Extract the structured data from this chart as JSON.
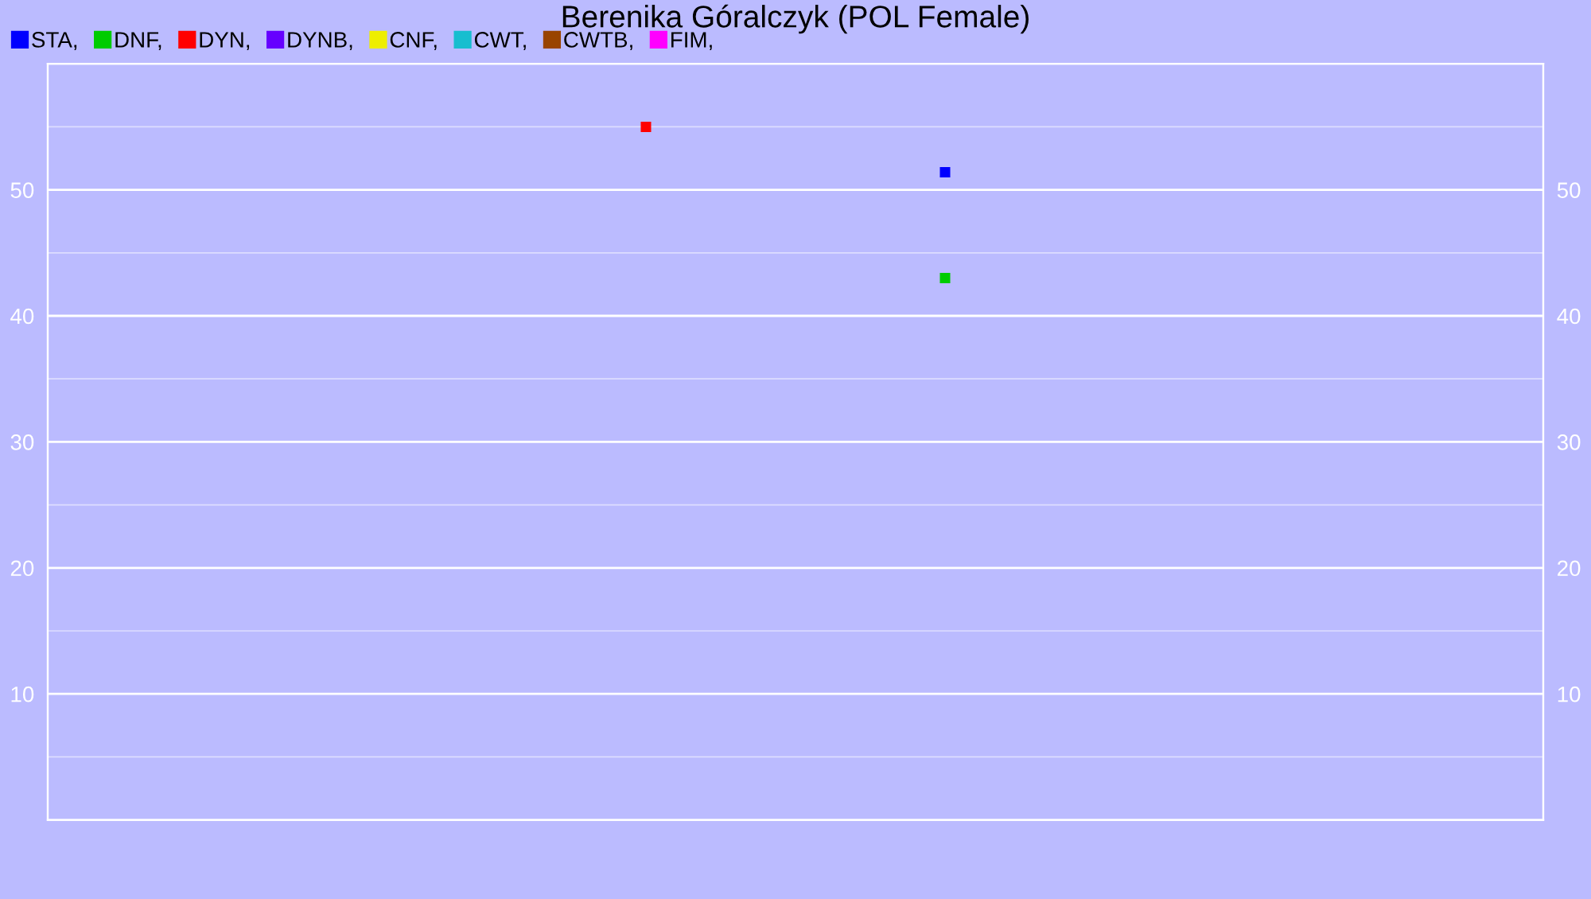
{
  "chart_data": {
    "type": "scatter",
    "title": "Berenika Góralczyk (POL Female)",
    "categories": [
      null,
      null
    ],
    "series": [
      {
        "name": "STA,",
        "color": "#0000ff",
        "values": [
          null,
          51.4
        ]
      },
      {
        "name": "DNF,",
        "color": "#00cc00",
        "values": [
          null,
          43
        ]
      },
      {
        "name": "DYN,",
        "color": "#ff0000",
        "values": [
          55,
          null
        ]
      },
      {
        "name": "DYNB,",
        "color": "#6600ff",
        "values": [
          null,
          null
        ]
      },
      {
        "name": "CNF,",
        "color": "#eeee00",
        "values": [
          null,
          null
        ]
      },
      {
        "name": "CWT,",
        "color": "#17becf",
        "values": [
          null,
          null
        ]
      },
      {
        "name": "CWTB,",
        "color": "#994400",
        "values": [
          null,
          null
        ]
      },
      {
        "name": "FIM,",
        "color": "#ff00ff",
        "values": [
          null,
          null
        ]
      }
    ],
    "ylim": [
      0,
      60
    ],
    "yticks": [
      {
        "value": 5,
        "label": null
      },
      10,
      {
        "value": 15,
        "label": null
      },
      20,
      {
        "value": 25,
        "label": null
      },
      30,
      {
        "value": 35,
        "label": null
      },
      40,
      {
        "value": 45,
        "label": null
      },
      50,
      {
        "value": 55,
        "label": null
      }
    ],
    "y2lim": [
      0,
      60
    ],
    "y2ticks": [
      10,
      20,
      30,
      40,
      50
    ],
    "grid": "y",
    "legend": "top left",
    "marker": "square"
  }
}
